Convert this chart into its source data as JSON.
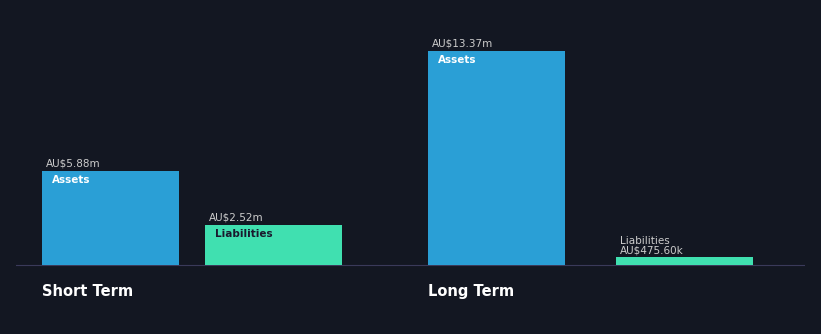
{
  "background_color": "#131722",
  "bar_color_assets": "#2a9fd6",
  "bar_color_liabilities": "#40e0b0",
  "text_color": "#ffffff",
  "label_color_above": "#cccccc",
  "short_term_assets_value": 5.88,
  "short_term_liabilities_value": 2.52,
  "long_term_assets_value": 13.37,
  "long_term_liabilities_value": 0.4756,
  "short_term_assets_label": "AU$5.88m",
  "short_term_liabilities_label": "AU$2.52m",
  "long_term_assets_label": "AU$13.37m",
  "long_term_liabilities_label": "AU$475.60k",
  "bar_inner_label_assets": "Assets",
  "bar_inner_label_liabilities": "Liabilities",
  "group_label_short": "Short Term",
  "group_label_long": "Long Term",
  "ylim_max": 15.5,
  "bar_width": 1.6
}
